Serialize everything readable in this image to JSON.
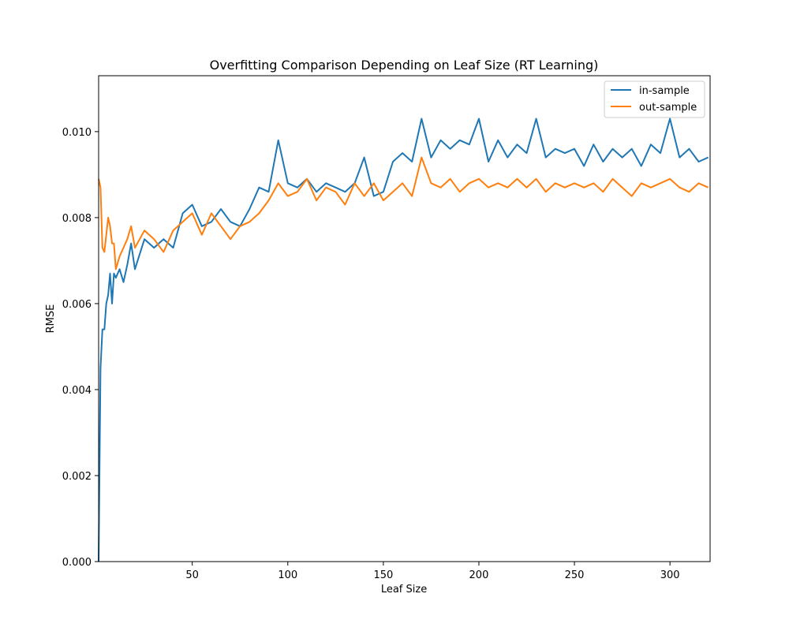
{
  "chart_data": {
    "type": "line",
    "title": "Overfitting Comparison Depending on Leaf Size (RT Learning)",
    "xlabel": "Leaf Size",
    "ylabel": "RMSE",
    "xlim": [
      1,
      321
    ],
    "ylim": [
      0.0,
      0.0113
    ],
    "xticks": [
      50,
      100,
      150,
      200,
      250,
      300
    ],
    "yticks": [
      0.0,
      0.002,
      0.004,
      0.006,
      0.008,
      0.01
    ],
    "ytick_labels": [
      "0.000",
      "0.002",
      "0.004",
      "0.006",
      "0.008",
      "0.010"
    ],
    "grid": false,
    "legend_position": "upper right",
    "series": [
      {
        "name": "in-sample",
        "color": "#1f77b4",
        "x": [
          1,
          2,
          3,
          4,
          5,
          6,
          7,
          8,
          9,
          10,
          12,
          14,
          16,
          18,
          20,
          25,
          30,
          35,
          40,
          45,
          50,
          55,
          60,
          65,
          70,
          75,
          80,
          85,
          90,
          95,
          100,
          105,
          110,
          115,
          120,
          125,
          130,
          135,
          140,
          145,
          150,
          155,
          160,
          165,
          170,
          175,
          180,
          185,
          190,
          195,
          200,
          205,
          210,
          215,
          220,
          225,
          230,
          235,
          240,
          245,
          250,
          255,
          260,
          265,
          270,
          275,
          280,
          285,
          290,
          295,
          300,
          305,
          310,
          315,
          320
        ],
        "y": [
          0.0,
          0.0045,
          0.0054,
          0.0054,
          0.006,
          0.0062,
          0.0067,
          0.006,
          0.0067,
          0.0066,
          0.0068,
          0.0065,
          0.0069,
          0.0074,
          0.0068,
          0.0075,
          0.0073,
          0.0075,
          0.0073,
          0.0081,
          0.0083,
          0.0078,
          0.0079,
          0.0082,
          0.0079,
          0.0078,
          0.0082,
          0.0087,
          0.0086,
          0.0098,
          0.0088,
          0.0087,
          0.0089,
          0.0086,
          0.0088,
          0.0087,
          0.0086,
          0.0088,
          0.0094,
          0.0085,
          0.0086,
          0.0093,
          0.0095,
          0.0093,
          0.0103,
          0.0094,
          0.0098,
          0.0096,
          0.0098,
          0.0097,
          0.0103,
          0.0093,
          0.0098,
          0.0094,
          0.0097,
          0.0095,
          0.0103,
          0.0094,
          0.0096,
          0.0095,
          0.0096,
          0.0092,
          0.0097,
          0.0093,
          0.0096,
          0.0094,
          0.0096,
          0.0092,
          0.0097,
          0.0095,
          0.0103,
          0.0094,
          0.0096,
          0.0093,
          0.0094
        ]
      },
      {
        "name": "out-sample",
        "color": "#ff7f0e",
        "x": [
          1,
          2,
          3,
          4,
          5,
          6,
          7,
          8,
          9,
          10,
          12,
          14,
          16,
          18,
          20,
          25,
          30,
          35,
          40,
          45,
          50,
          55,
          60,
          65,
          70,
          75,
          80,
          85,
          90,
          95,
          100,
          105,
          110,
          115,
          120,
          125,
          130,
          135,
          140,
          145,
          150,
          155,
          160,
          165,
          170,
          175,
          180,
          185,
          190,
          195,
          200,
          205,
          210,
          215,
          220,
          225,
          230,
          235,
          240,
          245,
          250,
          255,
          260,
          265,
          270,
          275,
          280,
          285,
          290,
          295,
          300,
          305,
          310,
          315,
          320
        ],
        "y": [
          0.0089,
          0.0087,
          0.0073,
          0.0072,
          0.0076,
          0.008,
          0.0078,
          0.0074,
          0.0074,
          0.0068,
          0.0071,
          0.0073,
          0.0075,
          0.0078,
          0.0073,
          0.0077,
          0.0075,
          0.0072,
          0.0077,
          0.0079,
          0.0081,
          0.0076,
          0.0081,
          0.0078,
          0.0075,
          0.0078,
          0.0079,
          0.0081,
          0.0084,
          0.0088,
          0.0085,
          0.0086,
          0.0089,
          0.0084,
          0.0087,
          0.0086,
          0.0083,
          0.0088,
          0.0085,
          0.0088,
          0.0084,
          0.0086,
          0.0088,
          0.0085,
          0.0094,
          0.0088,
          0.0087,
          0.0089,
          0.0086,
          0.0088,
          0.0089,
          0.0087,
          0.0088,
          0.0087,
          0.0089,
          0.0087,
          0.0089,
          0.0086,
          0.0088,
          0.0087,
          0.0088,
          0.0087,
          0.0088,
          0.0086,
          0.0089,
          0.0087,
          0.0085,
          0.0088,
          0.0087,
          0.0088,
          0.0089,
          0.0087,
          0.0086,
          0.0088,
          0.0087
        ]
      }
    ]
  }
}
